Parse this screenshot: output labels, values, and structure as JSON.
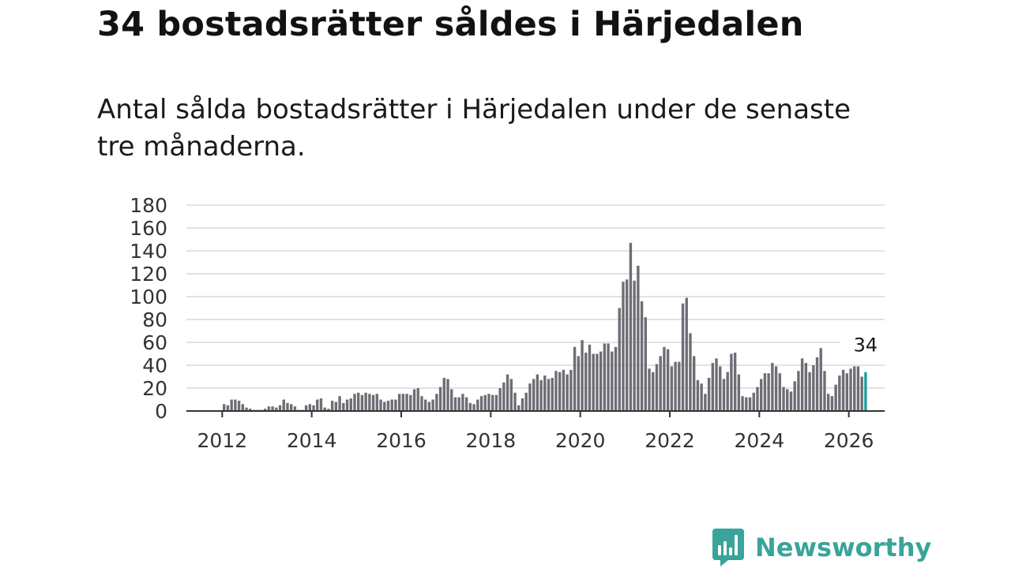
{
  "title": "34 bostadsrätter såldes i Härjedalen",
  "subtitle": "Antal sålda bostadsrätter i Härjedalen under de senaste tre månaderna.",
  "brand": {
    "name": "Newsworthy",
    "logo_icon": "bar-chart-bubble-icon"
  },
  "colors": {
    "bar": "#6d6d75",
    "highlight": "#1a9ea0",
    "grid": "#d9d9d9",
    "axis": "#333333",
    "brand": "#3aa39a"
  },
  "chart_data": {
    "type": "bar",
    "title": "34 bostadsrätter såldes i Härjedalen",
    "xlabel": "",
    "ylabel": "",
    "ylim": [
      0,
      180
    ],
    "yticks": [
      0,
      20,
      40,
      60,
      80,
      100,
      120,
      140,
      160,
      180
    ],
    "xlim": [
      2011.2,
      2026.8
    ],
    "xticks": [
      "2012",
      "2014",
      "2016",
      "2018",
      "2020",
      "2022",
      "2024",
      "2026"
    ],
    "grid": true,
    "start": "2011-01",
    "values": [
      0,
      0,
      0,
      0,
      0,
      0,
      0,
      0,
      0,
      0,
      0,
      0,
      6,
      5,
      10,
      10,
      9,
      6,
      3,
      2,
      1,
      1,
      1,
      2,
      4,
      4,
      3,
      5,
      10,
      7,
      6,
      4,
      1,
      1,
      5,
      6,
      5,
      10,
      11,
      3,
      2,
      9,
      8,
      13,
      7,
      10,
      11,
      15,
      16,
      14,
      16,
      15,
      14,
      15,
      10,
      8,
      9,
      10,
      10,
      15,
      15,
      15,
      14,
      19,
      20,
      13,
      10,
      8,
      10,
      15,
      21,
      29,
      28,
      19,
      12,
      12,
      15,
      12,
      7,
      6,
      10,
      13,
      14,
      15,
      14,
      14,
      20,
      25,
      32,
      28,
      16,
      5,
      11,
      16,
      24,
      28,
      32,
      27,
      31,
      28,
      29,
      35,
      34,
      36,
      32,
      36,
      56,
      48,
      62,
      51,
      58,
      50,
      50,
      52,
      59,
      59,
      52,
      56,
      90,
      113,
      115,
      147,
      114,
      127,
      96,
      82,
      37,
      34,
      41,
      48,
      56,
      54,
      39,
      43,
      43,
      94,
      99,
      68,
      48,
      27,
      24,
      15,
      29,
      42,
      46,
      39,
      28,
      34,
      50,
      51,
      32,
      13,
      12,
      12,
      16,
      21,
      28,
      33,
      33,
      42,
      39,
      33,
      21,
      19,
      17,
      26,
      35,
      46,
      42,
      34,
      40,
      47,
      55,
      35,
      15,
      13,
      23,
      31,
      36,
      33,
      37,
      39,
      39,
      30,
      34
    ],
    "highlight_last": 1,
    "annotation": "34"
  }
}
